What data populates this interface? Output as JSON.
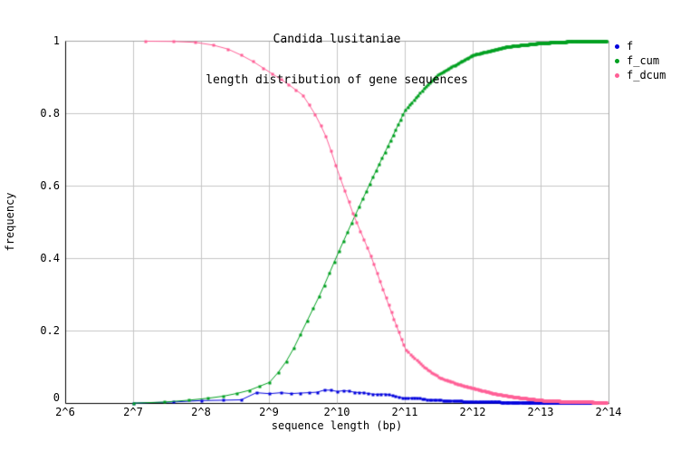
{
  "chart_data": {
    "type": "line",
    "title": "Candida lusitaniae",
    "subtitle": "length distribution of gene sequences",
    "xlabel": "sequence length (bp)",
    "ylabel": "frequency",
    "x_scale": "log2",
    "x_range_octaves": [
      6,
      14
    ],
    "y_range": [
      0,
      1
    ],
    "grid": true,
    "legend_position": "outside-top-right",
    "colors": {
      "background": "#ffffff",
      "axis": "#000000",
      "border": "#a6a6a6",
      "gridline": "#c6c6c6",
      "text": "#000000"
    },
    "x_ticks": [
      {
        "label": "2^6",
        "octave": 6
      },
      {
        "label": "2^7",
        "octave": 7
      },
      {
        "label": "2^8",
        "octave": 8
      },
      {
        "label": "2^9",
        "octave": 9
      },
      {
        "label": "2^10",
        "octave": 10
      },
      {
        "label": "2^11",
        "octave": 11
      },
      {
        "label": "2^12",
        "octave": 12
      },
      {
        "label": "2^13",
        "octave": 13
      },
      {
        "label": "2^14",
        "octave": 14
      }
    ],
    "y_ticks": [
      {
        "label": "0",
        "value": 0
      },
      {
        "label": "0.2",
        "value": 0.2
      },
      {
        "label": "0.4",
        "value": 0.4
      },
      {
        "label": "0.6",
        "value": 0.6
      },
      {
        "label": "0.8",
        "value": 0.8
      },
      {
        "label": "1",
        "value": 1
      }
    ],
    "series": [
      {
        "name": "f",
        "color": "#0000dd",
        "marker": "square",
        "sampling": {
          "start_bp": 128,
          "end_bp": 14500,
          "step_bp": 64
        },
        "anchors_octave_value": [
          [
            7.0,
            0.001
          ],
          [
            7.2,
            0.002
          ],
          [
            7.6,
            0.004
          ],
          [
            8.0,
            0.008
          ],
          [
            8.35,
            0.009
          ],
          [
            8.6,
            0.01
          ],
          [
            8.78,
            0.03
          ],
          [
            9.0,
            0.027
          ],
          [
            9.15,
            0.03
          ],
          [
            9.3,
            0.027
          ],
          [
            9.5,
            0.029
          ],
          [
            9.7,
            0.031
          ],
          [
            9.85,
            0.039
          ],
          [
            10.0,
            0.033
          ],
          [
            10.12,
            0.036
          ],
          [
            10.25,
            0.031
          ],
          [
            10.4,
            0.029
          ],
          [
            10.55,
            0.025
          ],
          [
            10.7,
            0.026
          ],
          [
            10.85,
            0.02
          ],
          [
            11.0,
            0.014
          ],
          [
            11.15,
            0.016
          ],
          [
            11.3,
            0.011
          ],
          [
            11.5,
            0.009
          ],
          [
            11.75,
            0.007
          ],
          [
            12.0,
            0.005
          ],
          [
            12.3,
            0.004
          ],
          [
            12.7,
            0.003
          ],
          [
            13.2,
            0.002
          ],
          [
            13.9,
            0.002
          ]
        ]
      },
      {
        "name": "f_cum",
        "color": "#00a020",
        "marker": "square",
        "sampling": {
          "start_bp": 128,
          "end_bp": 16000,
          "step_bp": 48
        },
        "anchors_octave_value": [
          [
            7.0,
            0.001
          ],
          [
            7.5,
            0.004
          ],
          [
            8.0,
            0.012
          ],
          [
            8.4,
            0.022
          ],
          [
            8.7,
            0.036
          ],
          [
            9.0,
            0.058
          ],
          [
            9.15,
            0.09
          ],
          [
            9.3,
            0.13
          ],
          [
            9.6,
            0.245
          ],
          [
            9.77,
            0.31
          ],
          [
            10.0,
            0.41
          ],
          [
            10.24,
            0.51
          ],
          [
            10.5,
            0.615
          ],
          [
            10.77,
            0.72
          ],
          [
            11.0,
            0.81
          ],
          [
            11.3,
            0.875
          ],
          [
            11.5,
            0.91
          ],
          [
            12.0,
            0.962
          ],
          [
            12.5,
            0.985
          ],
          [
            13.0,
            0.995
          ],
          [
            13.4,
            0.999
          ],
          [
            13.97,
            1.0
          ]
        ]
      },
      {
        "name": "f_dcum",
        "color": "#ff5f96",
        "marker": "square",
        "sampling": {
          "start_bp": 144,
          "end_bp": 16000,
          "step_bp": 48
        },
        "anchors_octave_value": [
          [
            7.17,
            1.0
          ],
          [
            7.8,
            0.999
          ],
          [
            8.0,
            0.995
          ],
          [
            8.3,
            0.985
          ],
          [
            8.5,
            0.97
          ],
          [
            8.75,
            0.945
          ],
          [
            9.0,
            0.915
          ],
          [
            9.25,
            0.885
          ],
          [
            9.5,
            0.85
          ],
          [
            9.7,
            0.79
          ],
          [
            9.85,
            0.73
          ],
          [
            10.0,
            0.645
          ],
          [
            10.24,
            0.52
          ],
          [
            10.5,
            0.405
          ],
          [
            10.75,
            0.275
          ],
          [
            11.0,
            0.15
          ],
          [
            11.25,
            0.105
          ],
          [
            11.5,
            0.072
          ],
          [
            11.75,
            0.055
          ],
          [
            12.0,
            0.042
          ],
          [
            12.3,
            0.028
          ],
          [
            12.6,
            0.018
          ],
          [
            13.0,
            0.009
          ],
          [
            13.4,
            0.005
          ],
          [
            13.97,
            0.003
          ]
        ]
      }
    ],
    "annotations": {
      "curve_crossing": {
        "x_octave": 10.25,
        "y": 0.51
      }
    }
  }
}
